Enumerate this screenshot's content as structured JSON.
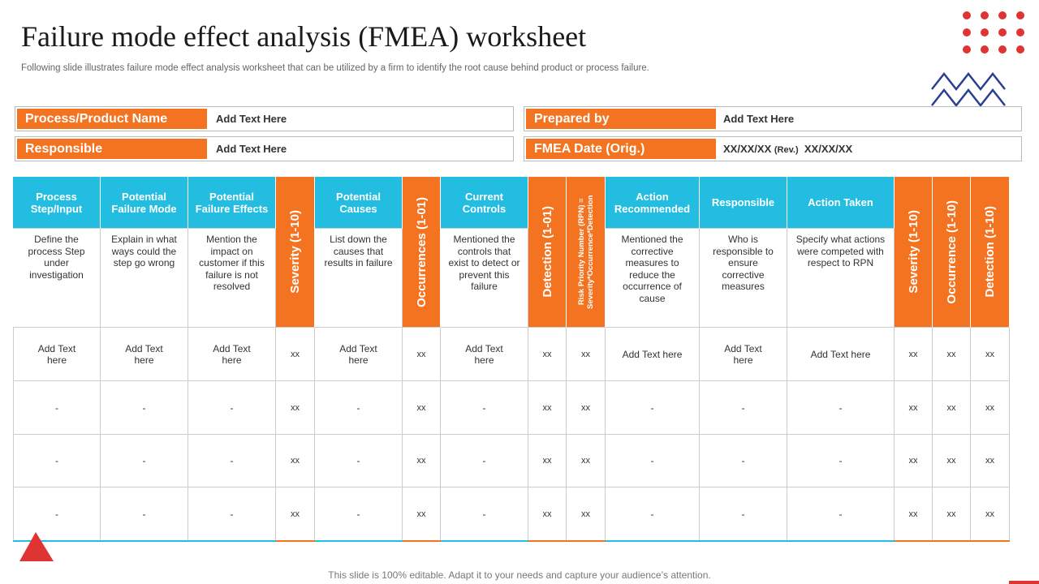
{
  "header": {
    "title": "Failure mode effect analysis (FMEA) worksheet",
    "subtitle": "Following slide illustrates failure mode effect analysis worksheet that can be utilized by a firm to identify the root cause behind product or process failure."
  },
  "info": {
    "process_label": "Process/Product Name",
    "process_value": "Add Text Here",
    "responsible_label": "Responsible",
    "responsible_value": "Add Text Here",
    "prepared_label": "Prepared by",
    "prepared_value": "Add Text Here",
    "date_label": "FMEA Date (Orig.)",
    "date_value": "XX/XX/XX",
    "rev_label": "(Rev.)",
    "rev_value": "XX/XX/XX"
  },
  "table": {
    "columns": [
      {
        "header": "Process Step/Input",
        "description": "Define the process Step under investigation"
      },
      {
        "header": "Potential Failure Mode",
        "description": "Explain in what ways could the step go wrong"
      },
      {
        "header": "Potential Failure Effects",
        "description": "Mention the impact on customer if this failure is not resolved"
      },
      {
        "header": "Severity (1-10)"
      },
      {
        "header": "Potential Causes",
        "description": "List down the causes that results in failure"
      },
      {
        "header": "Occurrences (1-01)"
      },
      {
        "header": "Current Controls",
        "description": "Mentioned the controls that exist to detect or prevent this failure"
      },
      {
        "header": "Detection (1-01)"
      },
      {
        "header": "Risk Priority Number (RPN) = Severity*Occurrence*Detection"
      },
      {
        "header": "Action Recommended",
        "description": "Mentioned the corrective measures to reduce the occurrence of cause"
      },
      {
        "header": "Responsible",
        "description": "Who is responsible to ensure corrective measures"
      },
      {
        "header": "Action Taken",
        "description": "Specify what actions were competed with respect to RPN"
      },
      {
        "header": "Severity (1-10)"
      },
      {
        "header": "Occurrence (1-10)"
      },
      {
        "header": "Detection (1-10)"
      }
    ],
    "rows": [
      [
        "Add Text here",
        "Add Text here",
        "Add Text here",
        "xx",
        "Add Text here",
        "xx",
        "Add Text here",
        "xx",
        "xx",
        "Add Text here",
        "Add Text here",
        "Add Text here",
        "xx",
        "xx",
        "xx"
      ],
      [
        "-",
        "-",
        "-",
        "xx",
        "-",
        "xx",
        "-",
        "xx",
        "xx",
        "-",
        "-",
        "-",
        "xx",
        "xx",
        "xx"
      ],
      [
        "-",
        "-",
        "-",
        "xx",
        "-",
        "xx",
        "-",
        "xx",
        "xx",
        "-",
        "-",
        "-",
        "xx",
        "xx",
        "xx"
      ],
      [
        "-",
        "-",
        "-",
        "xx",
        "-",
        "xx",
        "-",
        "xx",
        "xx",
        "-",
        "-",
        "-",
        "xx",
        "xx",
        "xx"
      ]
    ]
  },
  "footer": "This slide is 100% editable. Adapt it to your needs and capture your audience’s attention."
}
